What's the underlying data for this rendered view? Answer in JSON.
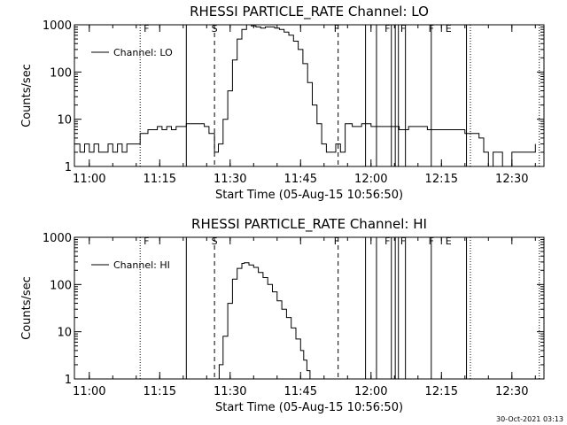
{
  "footer_timestamp": "30-Oct-2021 03:13",
  "chart_data": [
    {
      "type": "line",
      "title": "RHESSI PARTICLE_RATE Channel: LO",
      "xlabel": "Start Time (05-Aug-15 10:56:50)",
      "ylabel": "Counts/sec",
      "y_scale": "log",
      "ylim": [
        1,
        1000
      ],
      "xlim_minutes": [
        0,
        100
      ],
      "x_ticks": [
        "11:00",
        "11:15",
        "11:30",
        "11:45",
        "12:00",
        "12:15",
        "12:30"
      ],
      "y_ticks": [
        "1",
        "10",
        "100",
        "1000"
      ],
      "legend": {
        "label": "Channel: LO",
        "placement": "top-left"
      },
      "annotations": [
        {
          "label": "F",
          "t": "11:12:10",
          "style": "solid"
        },
        {
          "label": "S",
          "t": "11:26:40",
          "style": "dashed"
        },
        {
          "label": "F",
          "t": "11:52:40",
          "style": "solid"
        },
        {
          "label": "F",
          "t": "12:03:30",
          "style": "solid"
        },
        {
          "label": "F",
          "t": "12:06:50",
          "style": "solid"
        },
        {
          "label": "F",
          "t": "12:12:50",
          "style": "solid"
        },
        {
          "label": "E",
          "t": "12:16:30",
          "style": "solid"
        }
      ],
      "vertical_lines": [
        {
          "t": "11:10:50",
          "style": "dotted"
        },
        {
          "t": "11:20:40",
          "style": "solid"
        },
        {
          "t": "11:26:40",
          "style": "dashed"
        },
        {
          "t": "11:53:00",
          "style": "dashed"
        },
        {
          "t": "11:58:50",
          "style": "solid"
        },
        {
          "t": "12:01:10",
          "style": "solid"
        },
        {
          "t": "12:04:20",
          "style": "solid"
        },
        {
          "t": "12:05:10",
          "style": "solid"
        },
        {
          "t": "12:05:50",
          "style": "solid"
        },
        {
          "t": "12:07:20",
          "style": "solid"
        },
        {
          "t": "12:12:50",
          "style": "solid"
        },
        {
          "t": "12:20:20",
          "style": "solid"
        },
        {
          "t": "12:21:10",
          "style": "dotted"
        },
        {
          "t": "12:35:50",
          "style": "dotted"
        }
      ],
      "series": [
        {
          "name": "Channel: LO",
          "x": [
            "10:56:50",
            "10:58:00",
            "10:59:00",
            "11:00:00",
            "11:01:00",
            "11:02:00",
            "11:03:00",
            "11:04:00",
            "11:05:00",
            "11:06:00",
            "11:07:00",
            "11:08:00",
            "11:09:00",
            "11:10:00",
            "11:10:50",
            "11:11:30",
            "11:12:30",
            "11:13:30",
            "11:14:30",
            "11:15:30",
            "11:16:30",
            "11:17:30",
            "11:18:30",
            "11:19:30",
            "11:20:40",
            "11:21:30",
            "11:22:30",
            "11:23:30",
            "11:24:30",
            "11:25:30",
            "11:26:40",
            "11:27:30",
            "11:28:30",
            "11:29:30",
            "11:30:30",
            "11:31:30",
            "11:32:30",
            "11:33:30",
            "11:34:30",
            "11:35:30",
            "11:36:30",
            "11:37:30",
            "11:38:30",
            "11:39:30",
            "11:40:30",
            "11:41:30",
            "11:42:30",
            "11:43:30",
            "11:44:30",
            "11:45:30",
            "11:46:30",
            "11:47:30",
            "11:48:30",
            "11:49:30",
            "11:50:30",
            "11:51:30",
            "11:52:30",
            "11:53:30",
            "11:54:30",
            "11:56:00",
            "11:58:00",
            "12:00:00",
            "12:02:00",
            "12:04:00",
            "12:06:00",
            "12:08:00",
            "12:10:00",
            "12:12:00",
            "12:14:00",
            "12:16:00",
            "12:18:00",
            "12:20:00",
            "12:21:00",
            "12:22:00",
            "12:23:00",
            "12:24:00",
            "12:25:00",
            "12:26:00",
            "12:28:00",
            "12:30:00",
            "12:32:00",
            "12:33:00",
            "12:34:00",
            "12:35:00"
          ],
          "y": [
            3,
            2,
            3,
            2,
            3,
            2,
            2,
            3,
            2,
            3,
            2,
            3,
            3,
            3,
            5,
            5,
            6,
            6,
            7,
            6,
            7,
            6,
            7,
            7,
            8,
            8,
            8,
            8,
            7,
            5,
            2,
            3,
            10,
            40,
            180,
            500,
            800,
            1000,
            950,
            900,
            850,
            900,
            900,
            850,
            800,
            700,
            600,
            450,
            300,
            150,
            60,
            20,
            8,
            3,
            2,
            2,
            3,
            2,
            8,
            7,
            8,
            7,
            7,
            7,
            6,
            7,
            7,
            6,
            6,
            6,
            6,
            5,
            5,
            5,
            4,
            2,
            1,
            2,
            1,
            2,
            2,
            2,
            2,
            3
          ]
        }
      ]
    },
    {
      "type": "line",
      "title": "RHESSI PARTICLE_RATE Channel: HI",
      "xlabel": "Start Time (05-Aug-15 10:56:50)",
      "ylabel": "Counts/sec",
      "y_scale": "log",
      "ylim": [
        1,
        1000
      ],
      "xlim_minutes": [
        0,
        100
      ],
      "x_ticks": [
        "11:00",
        "11:15",
        "11:30",
        "11:45",
        "12:00",
        "12:15",
        "12:30"
      ],
      "y_ticks": [
        "1",
        "10",
        "100",
        "1000"
      ],
      "legend": {
        "label": "Channel: HI",
        "placement": "top-left"
      },
      "annotations": [
        {
          "label": "F",
          "t": "11:12:10",
          "style": "solid"
        },
        {
          "label": "S",
          "t": "11:26:40",
          "style": "dashed"
        },
        {
          "label": "F",
          "t": "11:52:40",
          "style": "solid"
        },
        {
          "label": "F",
          "t": "12:03:30",
          "style": "solid"
        },
        {
          "label": "F",
          "t": "12:06:50",
          "style": "solid"
        },
        {
          "label": "F",
          "t": "12:12:50",
          "style": "solid"
        },
        {
          "label": "E",
          "t": "12:16:30",
          "style": "solid"
        }
      ],
      "vertical_lines": [
        {
          "t": "11:10:50",
          "style": "dotted"
        },
        {
          "t": "11:20:40",
          "style": "solid"
        },
        {
          "t": "11:26:40",
          "style": "dashed"
        },
        {
          "t": "11:53:00",
          "style": "dashed"
        },
        {
          "t": "11:58:50",
          "style": "solid"
        },
        {
          "t": "12:01:10",
          "style": "solid"
        },
        {
          "t": "12:04:20",
          "style": "solid"
        },
        {
          "t": "12:05:10",
          "style": "solid"
        },
        {
          "t": "12:05:50",
          "style": "solid"
        },
        {
          "t": "12:07:20",
          "style": "solid"
        },
        {
          "t": "12:12:50",
          "style": "solid"
        },
        {
          "t": "12:20:20",
          "style": "solid"
        },
        {
          "t": "12:21:10",
          "style": "dotted"
        },
        {
          "t": "12:35:50",
          "style": "dotted"
        }
      ],
      "series": [
        {
          "name": "Channel: HI",
          "x": [
            "11:27:10",
            "11:27:40",
            "11:28:30",
            "11:29:30",
            "11:30:30",
            "11:31:30",
            "11:32:30",
            "11:33:00",
            "11:34:00",
            "11:35:00",
            "11:36:00",
            "11:37:00",
            "11:38:00",
            "11:39:00",
            "11:40:00",
            "11:41:00",
            "11:42:00",
            "11:43:00",
            "11:44:00",
            "11:45:00",
            "11:45:40",
            "11:46:20",
            "11:47:00"
          ],
          "y": [
            1,
            2,
            8,
            40,
            130,
            220,
            280,
            290,
            260,
            230,
            180,
            140,
            100,
            70,
            45,
            30,
            20,
            12,
            7,
            4,
            2.5,
            1.5,
            1
          ]
        }
      ]
    }
  ]
}
